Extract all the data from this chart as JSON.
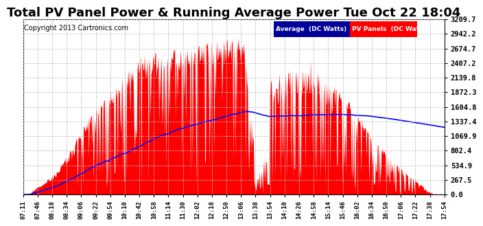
{
  "title": "Total PV Panel Power & Running Average Power Tue Oct 22 18:04",
  "copyright": "Copyright 2013 Cartronics.com",
  "ylabel_right_values": [
    0.0,
    267.5,
    534.9,
    802.4,
    1069.9,
    1337.4,
    1604.8,
    1872.3,
    2139.8,
    2407.2,
    2674.7,
    2942.2,
    3209.7
  ],
  "ymax": 3209.7,
  "ymin": 0.0,
  "fill_color": "#FF0000",
  "line_color": "#0000FF",
  "background_color": "#FFFFFF",
  "plot_background": "#FFFFFF",
  "grid_color": "#BBBBBB",
  "legend_avg_bg": "#000099",
  "legend_pv_bg": "#FF0000",
  "legend_avg_text": "Average  (DC Watts)",
  "legend_pv_text": "PV Panels  (DC Watts)",
  "title_fontsize": 13,
  "copyright_fontsize": 7,
  "x_labels": [
    "07:11",
    "07:46",
    "08:18",
    "08:34",
    "09:06",
    "09:22",
    "09:54",
    "10:10",
    "10:42",
    "10:58",
    "11:14",
    "11:30",
    "12:02",
    "12:18",
    "12:50",
    "13:06",
    "13:38",
    "13:54",
    "14:10",
    "14:26",
    "14:58",
    "15:14",
    "15:46",
    "16:02",
    "16:34",
    "16:50",
    "17:06",
    "17:22",
    "17:38",
    "17:54"
  ]
}
